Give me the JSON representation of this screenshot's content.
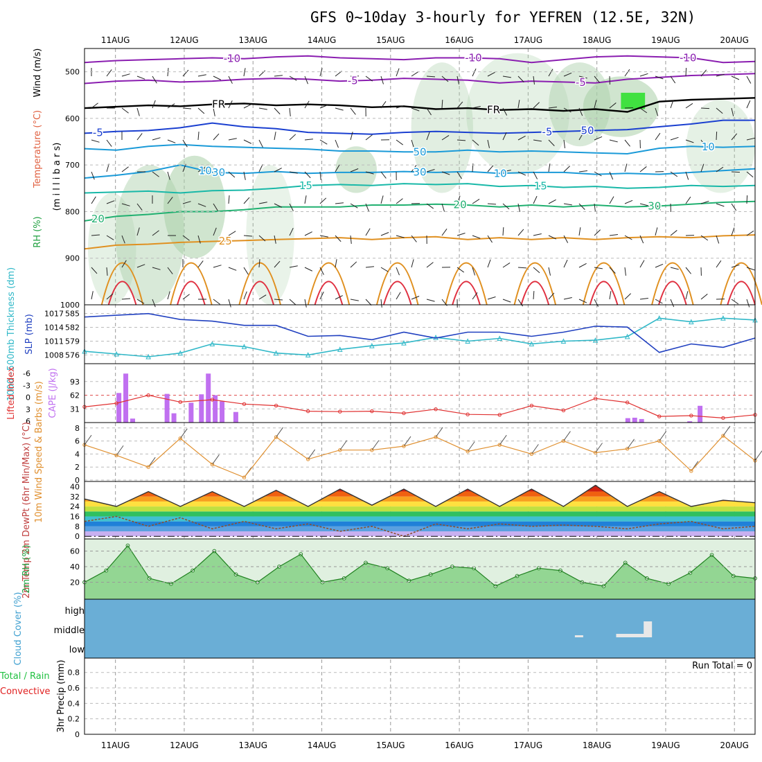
{
  "title": "GFS 0~10day 3-hourly for YEFREN (12.5E, 32N)",
  "dates": [
    "11AUG",
    "12AUG",
    "13AUG",
    "14AUG",
    "15AUG",
    "16AUG",
    "17AUG",
    "18AUG",
    "19AUG",
    "20AUG"
  ],
  "colors": {
    "purple": "#8a1db0",
    "blue": "#1a3fd0",
    "cyan": "#1a9ad8",
    "teal": "#18b8a8",
    "green": "#20b070",
    "orange": "#e09020",
    "red": "#e03040",
    "rhGreen": "#9dc9a0",
    "thk": "#30b8c8",
    "slp": "#2040c0",
    "cape": "#c070f0",
    "li": "#e03030",
    "wind": "#e09030"
  },
  "chart_data": [
    {
      "type": "line",
      "panel": "upper-air",
      "ylabel_parts": [
        "RH (%)",
        "Temperature (°C)",
        "Wind (m/s)"
      ],
      "ylabel_unit": "(m i l l i b a r s)",
      "yticks": [
        "500",
        "600",
        "700",
        "800",
        "900",
        "1000"
      ],
      "ylim": [
        450,
        1000
      ],
      "contour_labels": [
        "-10",
        "-10",
        "-5",
        "-5",
        "FR",
        "FR",
        "-5",
        "-5",
        "-10",
        "10",
        "10",
        "15",
        "15",
        "20",
        "20",
        "25",
        "30",
        "30",
        "50",
        "50",
        "30",
        "10"
      ],
      "series": [
        {
          "label": "-10",
          "values": [
            480,
            476,
            474,
            472,
            470,
            472,
            468,
            466,
            470,
            472,
            474,
            470,
            470,
            472,
            480,
            474,
            468,
            466,
            468,
            470,
            480,
            478
          ]
        },
        {
          "label": "-5",
          "values": [
            525,
            520,
            518,
            522,
            520,
            516,
            514,
            516,
            520,
            518,
            514,
            516,
            518,
            524,
            520,
            522,
            524,
            516,
            512,
            508,
            506,
            504
          ]
        },
        {
          "label": "FR",
          "values": [
            578,
            575,
            572,
            574,
            570,
            568,
            572,
            570,
            572,
            576,
            574,
            580,
            578,
            582,
            580,
            584,
            580,
            586,
            564,
            560,
            558,
            556
          ]
        },
        {
          "label": "-5",
          "values": [
            632,
            628,
            626,
            620,
            610,
            618,
            622,
            630,
            632,
            634,
            630,
            628,
            630,
            632,
            630,
            628,
            626,
            624,
            618,
            612,
            604,
            604
          ]
        },
        {
          "label": "-10",
          "values": [
            665,
            668,
            660,
            656,
            660,
            662,
            664,
            666,
            670,
            670,
            672,
            672,
            668,
            672,
            670,
            672,
            674,
            676,
            664,
            660,
            662,
            660
          ]
        },
        {
          "label": "10",
          "values": [
            728,
            722,
            714,
            700,
            716,
            718,
            714,
            718,
            716,
            716,
            714,
            716,
            714,
            718,
            716,
            716,
            720,
            718,
            720,
            716,
            712,
            708
          ]
        },
        {
          "label": "15",
          "values": [
            760,
            758,
            756,
            760,
            755,
            754,
            750,
            744,
            742,
            744,
            740,
            742,
            740,
            746,
            744,
            748,
            746,
            750,
            748,
            744,
            746,
            744
          ]
        },
        {
          "label": "20",
          "values": [
            820,
            810,
            806,
            800,
            800,
            796,
            790,
            790,
            790,
            786,
            786,
            784,
            786,
            790,
            786,
            790,
            786,
            790,
            788,
            784,
            780,
            778
          ]
        },
        {
          "label": "25",
          "values": [
            880,
            872,
            870,
            866,
            864,
            862,
            860,
            858,
            856,
            860,
            856,
            854,
            860,
            856,
            860,
            856,
            860,
            856,
            854,
            856,
            852,
            850
          ]
        }
      ]
    },
    {
      "type": "line",
      "panel": "thickness-slp",
      "ylabel_left": "1000~500mb Thickness (dm)",
      "ylabel_right": "SLP (mb)",
      "yticks_left": [
        "585",
        "582",
        "579",
        "576"
      ],
      "yticks_right": [
        "1017",
        "1014",
        "1011",
        "1008"
      ],
      "series": [
        {
          "name": "Thickness",
          "values": [
            576.8,
            576.2,
            575.6,
            576.4,
            578.4,
            577.8,
            576.4,
            576.0,
            577.2,
            578.0,
            578.6,
            579.8,
            579.0,
            579.6,
            578.4,
            579.0,
            579.2,
            580.0,
            584.0,
            583.2,
            584.0,
            583.6
          ]
        },
        {
          "name": "SLP",
          "values": [
            1016.6,
            1017.0,
            1017.4,
            1016.0,
            1015.6,
            1014.6,
            1014.6,
            1012.0,
            1012.2,
            1011.2,
            1013.0,
            1011.6,
            1013.0,
            1013.0,
            1012.0,
            1013.0,
            1014.4,
            1014.2,
            1008.2,
            1010.2,
            1009.4,
            1011.6
          ]
        }
      ]
    },
    {
      "type": "bar",
      "panel": "cape-li",
      "ylabel_left": "Lifted Index",
      "ylabel_right": "CAPE (J/kg)",
      "yticks_left": [
        "-6",
        "-3",
        "0",
        "3",
        "6"
      ],
      "yticks_right": [
        "93",
        "62",
        "31"
      ],
      "cape_bars": [
        [
          11.05,
          67
        ],
        [
          11.15,
          111
        ],
        [
          11.25,
          9
        ],
        [
          11.75,
          65
        ],
        [
          11.85,
          21
        ],
        [
          12.1,
          45
        ],
        [
          12.25,
          64
        ],
        [
          12.35,
          111
        ],
        [
          12.45,
          62
        ],
        [
          12.55,
          48
        ],
        [
          12.75,
          24
        ],
        [
          18.45,
          10
        ],
        [
          18.55,
          11
        ],
        [
          18.65,
          8
        ],
        [
          19.35,
          3
        ],
        [
          19.5,
          38
        ]
      ],
      "li_values": [
        2.4,
        1.5,
        -0.5,
        1.2,
        0.6,
        1.7,
        2.1,
        3.5,
        3.6,
        3.5,
        4.0,
        3.0,
        4.3,
        4.4,
        2.1,
        3.3,
        0.3,
        1.3,
        4.8,
        4.6,
        5.2,
        4.4
      ]
    },
    {
      "type": "line",
      "panel": "wind10m",
      "ylabel": "10m Wind Speed & Barbs (m/s)",
      "yticks": [
        "8",
        "6",
        "4",
        "2",
        "0"
      ],
      "values": [
        5.4,
        3.8,
        2.0,
        6.4,
        2.4,
        0.4,
        6.6,
        3.2,
        4.6,
        4.6,
        5.2,
        6.6,
        4.4,
        5.4,
        4.0,
        6.0,
        4.2,
        4.8,
        6.0,
        1.4,
        6.8,
        3.0
      ]
    },
    {
      "type": "area",
      "panel": "temp2m",
      "ylabel": "2m Temp 2m DewPt (6hr Min/Max) (°C)",
      "yticks": [
        "40",
        "32",
        "24",
        "16",
        "8",
        "0"
      ],
      "temp_values": [
        30,
        24,
        36,
        24,
        36,
        24,
        37,
        24,
        38,
        25,
        38,
        24,
        38,
        24,
        38,
        24,
        41,
        24,
        36,
        24,
        29,
        27
      ],
      "dew_values": [
        12,
        16,
        8,
        15,
        6,
        12,
        6,
        10,
        4,
        8,
        0,
        10,
        6,
        10,
        8,
        9,
        8,
        6,
        10,
        12,
        6,
        8
      ]
    },
    {
      "type": "area",
      "panel": "rh2m",
      "ylabel": "2m RH (%)",
      "yticks": [
        "60",
        "40",
        "20"
      ],
      "values": [
        20,
        35,
        67,
        25,
        18,
        35,
        60,
        30,
        20,
        40,
        56,
        20,
        25,
        45,
        38,
        22,
        30,
        40,
        38,
        15,
        28,
        38,
        35,
        20,
        15,
        45,
        25,
        18,
        32,
        55,
        28,
        25
      ]
    },
    {
      "type": "heatmap",
      "panel": "cloud",
      "ylabel": "Cloud Cover (%)",
      "levels": [
        "high",
        "middle",
        "low"
      ]
    },
    {
      "type": "bar",
      "panel": "precip",
      "ylabel_left": "Total / Rain Convective",
      "ylabel": "3hr Precip (mm)",
      "yticks": [
        "0.8",
        "0.6",
        "0.4",
        "0.2",
        "0"
      ],
      "run_total": "Run Total = 0"
    }
  ]
}
